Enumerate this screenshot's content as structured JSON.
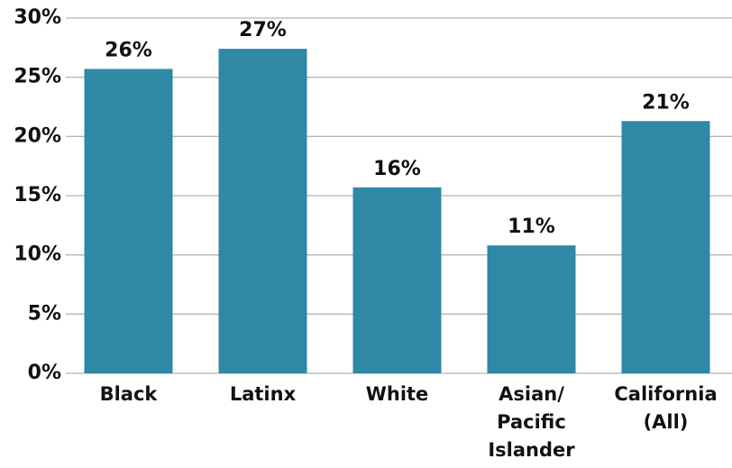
{
  "chart_data": {
    "type": "bar",
    "categories": [
      "Black",
      "Latinx",
      "White",
      "Asian/\nPacific\nIslander",
      "California\n(All)"
    ],
    "values": [
      25.7,
      27.4,
      15.7,
      10.8,
      21.3
    ],
    "value_labels": [
      "26%",
      "27%",
      "16%",
      "11%",
      "21%"
    ],
    "color": "#2e88a6",
    "ylim": [
      0,
      30
    ],
    "yticks": [
      {
        "value": 0,
        "label": "0%"
      },
      {
        "value": 5,
        "label": "5%"
      },
      {
        "value": 10,
        "label": "10%"
      },
      {
        "value": 15,
        "label": "15%"
      },
      {
        "value": 20,
        "label": "20%"
      },
      {
        "value": 25,
        "label": "25%"
      },
      {
        "value": 30,
        "label": "30%"
      }
    ],
    "grid": true
  }
}
